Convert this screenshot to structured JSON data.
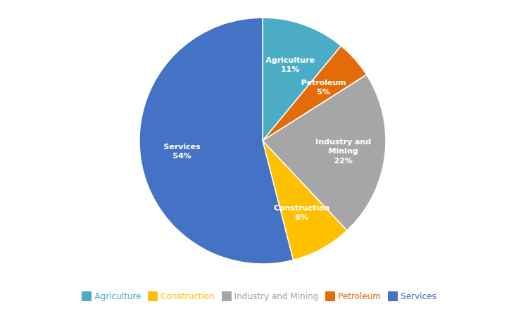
{
  "chart_data": {
    "type": "pie",
    "categories": [
      "Agriculture",
      "Petroleum",
      "Industry and Mining",
      "Construction",
      "Services"
    ],
    "values": [
      11,
      5,
      22,
      8,
      54
    ],
    "value_labels": [
      "Agriculture\n11%",
      "Petroleum\n5%",
      "Industry and\nMining\n22%",
      "Construction\n8%",
      "Services\n54%"
    ],
    "colors": [
      "#4BACC6",
      "#E36C09",
      "#A6A6A6",
      "#FFC000",
      "#4472C4"
    ],
    "data_labels": true,
    "legend": "bottom"
  }
}
